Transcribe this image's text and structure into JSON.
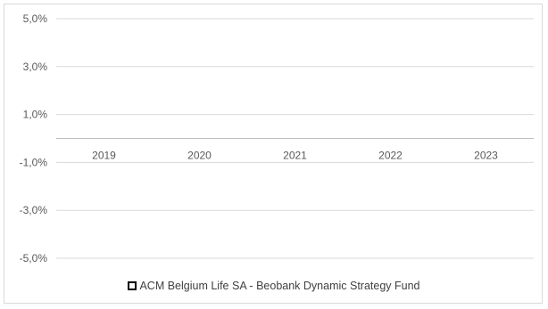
{
  "chart_data": {
    "type": "bar",
    "title": "",
    "xlabel": "",
    "ylabel": "",
    "categories": [
      "2019",
      "2020",
      "2021",
      "2022",
      "2023"
    ],
    "series": [
      {
        "name": "ACM Belgium Life SA - Beobank Dynamic Strategy Fund",
        "values": [
          null,
          null,
          null,
          null,
          null
        ],
        "color": "#000000"
      }
    ],
    "ylim": [
      -5.0,
      5.0
    ],
    "ytick_values": [
      5.0,
      3.0,
      1.0,
      -1.0,
      -3.0,
      -5.0
    ],
    "ytick_labels": [
      "5,0%",
      "3,0%",
      "1,0%",
      "-1,0%",
      "-3,0%",
      "-5,0%"
    ],
    "grid": true,
    "legend_position": "bottom",
    "colors": {
      "gridline": "#d9d9d9",
      "axis_line": "#bfbfbf",
      "tick_text": "#595959",
      "legend_text": "#404040"
    }
  }
}
